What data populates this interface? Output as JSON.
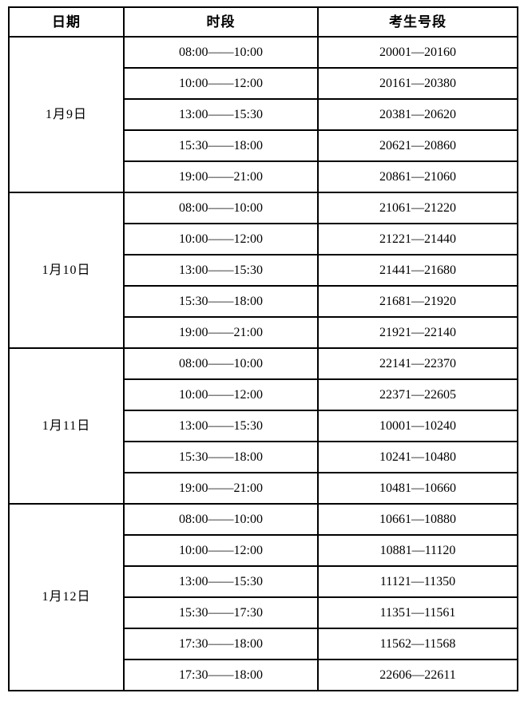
{
  "table": {
    "headers": [
      "日期",
      "时段",
      "考生号段"
    ],
    "groups": [
      {
        "date": "1月9日",
        "rows": [
          {
            "time": "08:00——10:00",
            "range": "20001—20160"
          },
          {
            "time": "10:00——12:00",
            "range": "20161—20380"
          },
          {
            "time": "13:00——15:30",
            "range": "20381—20620"
          },
          {
            "time": "15:30——18:00",
            "range": "20621—20860"
          },
          {
            "time": "19:00——21:00",
            "range": "20861—21060"
          }
        ]
      },
      {
        "date": "1月10日",
        "rows": [
          {
            "time": "08:00——10:00",
            "range": "21061—21220"
          },
          {
            "time": "10:00——12:00",
            "range": "21221—21440"
          },
          {
            "time": "13:00——15:30",
            "range": "21441—21680"
          },
          {
            "time": "15:30——18:00",
            "range": "21681—21920"
          },
          {
            "time": "19:00——21:00",
            "range": "21921—22140"
          }
        ]
      },
      {
        "date": "1月11日",
        "rows": [
          {
            "time": "08:00——10:00",
            "range": "22141—22370"
          },
          {
            "time": "10:00——12:00",
            "range": "22371—22605"
          },
          {
            "time": "13:00——15:30",
            "range": "10001—10240"
          },
          {
            "time": "15:30——18:00",
            "range": "10241—10480"
          },
          {
            "time": "19:00——21:00",
            "range": "10481—10660"
          }
        ]
      },
      {
        "date": "1月12日",
        "rows": [
          {
            "time": "08:00——10:00",
            "range": "10661—10880"
          },
          {
            "time": "10:00——12:00",
            "range": "10881—11120"
          },
          {
            "time": "13:00——15:30",
            "range": "11121—11350"
          },
          {
            "time": "15:30——17:30",
            "range": "11351—11561"
          },
          {
            "time": "17:30——18:00",
            "range": "11562—11568"
          },
          {
            "time": "17:30——18:00",
            "range": "22606—22611"
          }
        ]
      }
    ]
  }
}
